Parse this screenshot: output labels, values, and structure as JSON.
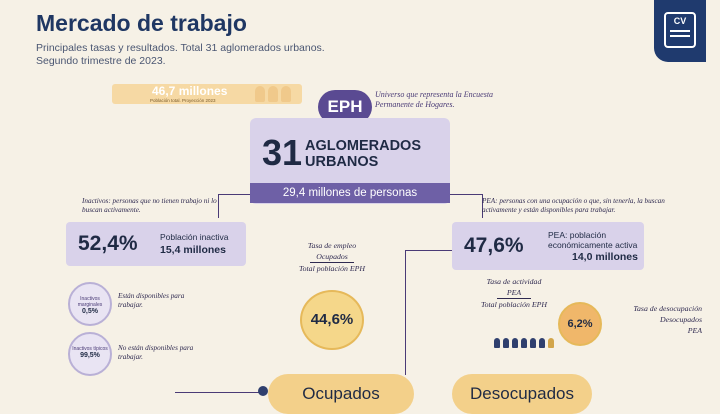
{
  "header": {
    "title": "Mercado de trabajo",
    "subtitle_1": "Principales tasas y resultados. Total 31 aglomerados urbanos.",
    "subtitle_2": "Segundo trimestre de 2023.",
    "logo_text": "CV"
  },
  "population": {
    "value": "46,7 millones",
    "note": "Población total. Proyección 2023"
  },
  "eph": {
    "badge": "EPH",
    "universe": "Universo que representa la Encuesta Permanente de Hogares.",
    "number": "31",
    "label": "AGLOMERADOS URBANOS",
    "persons": "29,4 millones de personas"
  },
  "inactivos": {
    "desc": "Inactivos: personas que no tienen trabajo ni lo buscan activamente.",
    "pct": "52,4%",
    "label": "Población inactiva",
    "value": "15,4 millones",
    "marginales_label": "Inactivos marginales",
    "marginales_pct": "0,5%",
    "marginales_desc": "Están disponibles para trabajar.",
    "tipicos_label": "Inactivos típicos",
    "tipicos_pct": "99,5%",
    "tipicos_desc": "No están disponibles para trabajar."
  },
  "empleo": {
    "title": "Tasa de empleo",
    "num": "Ocupados",
    "den": "Total población EPH",
    "pct": "44,6%"
  },
  "pea": {
    "desc": "PEA: personas con una ocupación o que, sin tenerla, la buscan activamente y están disponibles para trabajar.",
    "pct": "47,6%",
    "label": "PEA: población económicamente activa",
    "value": "14,0 millones",
    "actividad_title": "Tasa de actividad",
    "actividad_num": "PEA",
    "actividad_den": "Total población EPH"
  },
  "desocupacion": {
    "pct": "6,2%",
    "title": "Tasa de desocupación",
    "num": "Desocupados",
    "den": "PEA"
  },
  "bottom": {
    "ocupados": "Ocupados",
    "desocupados": "Desocupados"
  },
  "colors": {
    "navy": "#1f3763",
    "purple": "#6e60a6",
    "lavender": "#d9d2ea",
    "gold": "#f5d78a",
    "peach": "#f6d9a4"
  }
}
